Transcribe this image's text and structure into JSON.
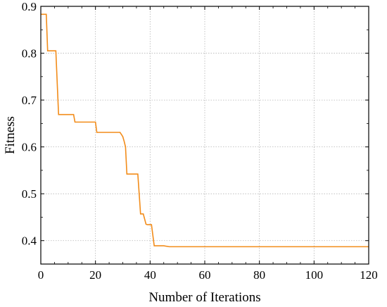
{
  "chart_data": {
    "type": "line",
    "title": "",
    "xlabel": "Number of Iterations",
    "ylabel": "Fitness",
    "xlim": [
      0,
      120
    ],
    "ylim": [
      0.35,
      0.9
    ],
    "xticks": [
      0,
      20,
      40,
      60,
      80,
      100,
      120
    ],
    "yticks": [
      0.4,
      0.5,
      0.6,
      0.7,
      0.8,
      0.9
    ],
    "ytick_labels": [
      "0.4",
      "0.5",
      "0.6",
      "0.7",
      "0.8",
      "0.9"
    ],
    "grid": true,
    "series": [
      {
        "color": "#f28c1a",
        "x": [
          0,
          2,
          2.5,
          5.5,
          6.5,
          12,
          12.5,
          20,
          20.5,
          29,
          30,
          30.5,
          31,
          31.5,
          35.5,
          36,
          36.5,
          37.5,
          38.5,
          39,
          40.5,
          41.5,
          42,
          45,
          47,
          120
        ],
        "y": [
          0.883,
          0.883,
          0.805,
          0.805,
          0.669,
          0.669,
          0.653,
          0.653,
          0.631,
          0.631,
          0.622,
          0.612,
          0.6,
          0.542,
          0.542,
          0.5,
          0.457,
          0.457,
          0.435,
          0.434,
          0.434,
          0.389,
          0.389,
          0.389,
          0.387,
          0.387
        ]
      }
    ]
  }
}
